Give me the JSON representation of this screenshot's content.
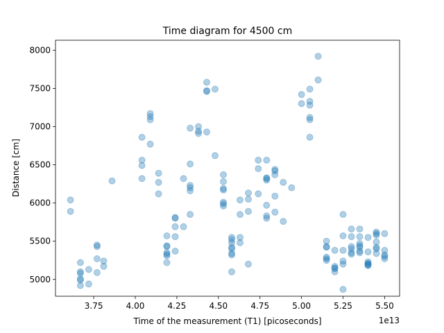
{
  "chart_data": {
    "type": "scatter",
    "title": "Time diagram for 4500 cm",
    "xlabel": "Time of the measurement (T1) [picoseconds]",
    "ylabel": "Distance [cm]",
    "x_offset_label": "1e13",
    "xlim": [
      3.52,
      5.59
    ],
    "ylim": [
      4780,
      8130
    ],
    "x_ticks": [
      3.75,
      4.0,
      4.25,
      4.5,
      4.75,
      5.0,
      5.25,
      5.5
    ],
    "x_tick_labels": [
      "3.75",
      "4.00",
      "4.25",
      "4.50",
      "4.75",
      "5.00",
      "5.25",
      "5.50"
    ],
    "y_ticks": [
      5000,
      5500,
      6000,
      6500,
      7000,
      7500,
      8000
    ],
    "y_tick_labels": [
      "5000",
      "5500",
      "6000",
      "6500",
      "7000",
      "7500",
      "8000"
    ],
    "grid": false,
    "marker_color": "#1f77b4",
    "marker_alpha": 0.35,
    "points": [
      [
        3.61,
        6040
      ],
      [
        3.61,
        5890
      ],
      [
        3.67,
        5220
      ],
      [
        3.67,
        5100
      ],
      [
        3.67,
        5080
      ],
      [
        3.67,
        5010
      ],
      [
        3.67,
        4990
      ],
      [
        3.67,
        4920
      ],
      [
        3.72,
        5130
      ],
      [
        3.72,
        4940
      ],
      [
        3.77,
        5450
      ],
      [
        3.77,
        5430
      ],
      [
        3.77,
        5270
      ],
      [
        3.77,
        5090
      ],
      [
        3.81,
        5240
      ],
      [
        3.81,
        5170
      ],
      [
        3.86,
        6290
      ],
      [
        4.04,
        6860
      ],
      [
        4.04,
        6560
      ],
      [
        4.04,
        6490
      ],
      [
        4.04,
        6320
      ],
      [
        4.09,
        7170
      ],
      [
        4.09,
        7130
      ],
      [
        4.09,
        7090
      ],
      [
        4.09,
        6770
      ],
      [
        4.14,
        6390
      ],
      [
        4.14,
        6270
      ],
      [
        4.14,
        6120
      ],
      [
        4.19,
        5570
      ],
      [
        4.19,
        5440
      ],
      [
        4.19,
        5430
      ],
      [
        4.19,
        5350
      ],
      [
        4.19,
        5330
      ],
      [
        4.19,
        5310
      ],
      [
        4.19,
        5220
      ],
      [
        4.24,
        5810
      ],
      [
        4.24,
        5800
      ],
      [
        4.24,
        5690
      ],
      [
        4.24,
        5560
      ],
      [
        4.24,
        5370
      ],
      [
        4.29,
        6320
      ],
      [
        4.29,
        5690
      ],
      [
        4.33,
        6980
      ],
      [
        4.33,
        6510
      ],
      [
        4.33,
        6230
      ],
      [
        4.33,
        6200
      ],
      [
        4.33,
        6160
      ],
      [
        4.33,
        5850
      ],
      [
        4.38,
        7000
      ],
      [
        4.38,
        6940
      ],
      [
        4.38,
        6910
      ],
      [
        4.43,
        7580
      ],
      [
        4.43,
        7470
      ],
      [
        4.43,
        7460
      ],
      [
        4.43,
        6930
      ],
      [
        4.48,
        7490
      ],
      [
        4.48,
        6620
      ],
      [
        4.53,
        6370
      ],
      [
        4.53,
        6280
      ],
      [
        4.53,
        6190
      ],
      [
        4.53,
        6170
      ],
      [
        4.53,
        6010
      ],
      [
        4.53,
        5990
      ],
      [
        4.53,
        5960
      ],
      [
        4.58,
        5550
      ],
      [
        4.58,
        5520
      ],
      [
        4.58,
        5480
      ],
      [
        4.58,
        5420
      ],
      [
        4.58,
        5400
      ],
      [
        4.58,
        5340
      ],
      [
        4.58,
        5320
      ],
      [
        4.58,
        5100
      ],
      [
        4.63,
        6040
      ],
      [
        4.63,
        5850
      ],
      [
        4.63,
        5550
      ],
      [
        4.63,
        5480
      ],
      [
        4.68,
        6130
      ],
      [
        4.68,
        6050
      ],
      [
        4.68,
        5890
      ],
      [
        4.68,
        5200
      ],
      [
        4.74,
        6560
      ],
      [
        4.74,
        6450
      ],
      [
        4.74,
        6120
      ],
      [
        4.79,
        6560
      ],
      [
        4.79,
        6330
      ],
      [
        4.79,
        6320
      ],
      [
        4.79,
        6300
      ],
      [
        4.79,
        5970
      ],
      [
        4.79,
        5830
      ],
      [
        4.79,
        5800
      ],
      [
        4.84,
        6440
      ],
      [
        4.84,
        6420
      ],
      [
        4.84,
        6370
      ],
      [
        4.84,
        6090
      ],
      [
        4.84,
        5880
      ],
      [
        4.89,
        6270
      ],
      [
        4.89,
        5760
      ],
      [
        4.94,
        6200
      ],
      [
        5.0,
        7420
      ],
      [
        5.0,
        7300
      ],
      [
        5.05,
        7490
      ],
      [
        5.05,
        7330
      ],
      [
        5.05,
        7280
      ],
      [
        5.05,
        7120
      ],
      [
        5.05,
        7090
      ],
      [
        5.05,
        6860
      ],
      [
        5.1,
        7920
      ],
      [
        5.1,
        7610
      ],
      [
        5.15,
        5500
      ],
      [
        5.15,
        5430
      ],
      [
        5.15,
        5420
      ],
      [
        5.15,
        5290
      ],
      [
        5.15,
        5270
      ],
      [
        5.15,
        5250
      ],
      [
        5.2,
        5380
      ],
      [
        5.2,
        5170
      ],
      [
        5.2,
        5150
      ],
      [
        5.2,
        5140
      ],
      [
        5.2,
        5100
      ],
      [
        5.25,
        5850
      ],
      [
        5.25,
        5570
      ],
      [
        5.25,
        5380
      ],
      [
        5.25,
        5240
      ],
      [
        5.25,
        5200
      ],
      [
        5.25,
        4870
      ],
      [
        5.3,
        5660
      ],
      [
        5.3,
        5560
      ],
      [
        5.3,
        5430
      ],
      [
        5.3,
        5400
      ],
      [
        5.3,
        5350
      ],
      [
        5.3,
        5330
      ],
      [
        5.35,
        5660
      ],
      [
        5.35,
        5560
      ],
      [
        5.35,
        5470
      ],
      [
        5.35,
        5440
      ],
      [
        5.35,
        5420
      ],
      [
        5.35,
        5370
      ],
      [
        5.35,
        5350
      ],
      [
        5.4,
        5550
      ],
      [
        5.4,
        5360
      ],
      [
        5.4,
        5230
      ],
      [
        5.4,
        5210
      ],
      [
        5.4,
        5200
      ],
      [
        5.4,
        5190
      ],
      [
        5.4,
        5180
      ],
      [
        5.45,
        5620
      ],
      [
        5.45,
        5600
      ],
      [
        5.45,
        5580
      ],
      [
        5.45,
        5490
      ],
      [
        5.45,
        5420
      ],
      [
        5.45,
        5400
      ],
      [
        5.45,
        5340
      ],
      [
        5.5,
        5600
      ],
      [
        5.5,
        5380
      ],
      [
        5.5,
        5320
      ],
      [
        5.5,
        5300
      ],
      [
        5.5,
        5270
      ]
    ]
  }
}
